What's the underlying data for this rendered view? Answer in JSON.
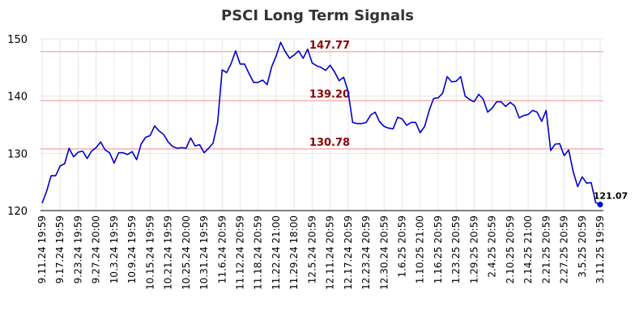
{
  "chart_data": {
    "type": "line",
    "title": "PSCI Long Term Signals",
    "xlabel": "",
    "ylabel": "",
    "ylim": [
      120,
      150
    ],
    "yticks": [
      120,
      130,
      140,
      150
    ],
    "grid": true,
    "line_color": "#0000cc",
    "hline_color": "#f4b6b6",
    "hlabel_color": "#8b0000",
    "xtick_labels": [
      "9.11.24 19:59",
      "9.17.24 19:59",
      "9.23.24 19:59",
      "9.27.24 20:00",
      "10.3.24 19:59",
      "10.9.24 19:59",
      "10.15.24 19:59",
      "10.21.24 19:59",
      "10.25.24 20:00",
      "10.31.24 19:59",
      "11.6.24 20:59",
      "11.12.24 20:59",
      "11.18.24 20:59",
      "11.22.24 21:00",
      "11.29.24 18:00",
      "12.5.24 20:59",
      "12.11.24 20:59",
      "12.17.24 20:59",
      "12.23.24 20:59",
      "12.30.24 20:59",
      "1.6.25 20:59",
      "1.10.25 21:00",
      "1.16.25 20:59",
      "1.23.25 20:59",
      "1.29.25 20:59",
      "2.4.25 20:59",
      "2.10.25 20:59",
      "2.14.25 21:00",
      "2.21.25 20:59",
      "2.27.25 20:59",
      "3.5.25 20:59",
      "3.11.25 19:59"
    ],
    "hlines": [
      {
        "value": 147.77,
        "label": "147.77"
      },
      {
        "value": 139.2,
        "label": "139.20"
      },
      {
        "value": 130.78,
        "label": "130.78"
      }
    ],
    "last_point": {
      "value": 121.07,
      "label": "121.07"
    },
    "series": [
      {
        "values": [
          121.3,
          123.4,
          126.1,
          126.1,
          127.8,
          128.2,
          130.9,
          129.4,
          130.2,
          130.4,
          129.1,
          130.4,
          131.0,
          132.0,
          130.6,
          130.1,
          128.3,
          130.1,
          130.1,
          129.8,
          130.3,
          128.9,
          131.6,
          132.8,
          133.1,
          134.8,
          133.9,
          133.3,
          132.0,
          131.2,
          130.9,
          131.0,
          130.9,
          132.7,
          131.3,
          131.5,
          130.1,
          130.9,
          131.8,
          135.4,
          144.6,
          144.1,
          145.7,
          147.9,
          145.6,
          145.6,
          143.9,
          142.4,
          142.4,
          142.8,
          142.0,
          145.1,
          147.0,
          149.4,
          147.8,
          146.6,
          147.2,
          147.9,
          146.6,
          148.2,
          145.8,
          145.3,
          145.0,
          144.5,
          145.4,
          144.2,
          142.7,
          143.3,
          140.8,
          135.4,
          135.2,
          135.2,
          135.4,
          136.7,
          137.2,
          135.5,
          134.7,
          134.4,
          134.3,
          136.3,
          136.0,
          134.9,
          135.4,
          135.4,
          133.6,
          134.7,
          137.5,
          139.6,
          139.7,
          140.5,
          143.4,
          142.5,
          142.6,
          143.4,
          140.0,
          139.4,
          139.0,
          140.3,
          139.5,
          137.2,
          137.9,
          139.0,
          139.0,
          138.2,
          138.9,
          138.3,
          136.2,
          136.6,
          136.8,
          137.5,
          137.2,
          135.6,
          137.5,
          130.5,
          131.6,
          131.7,
          129.6,
          130.6,
          126.8,
          124.2,
          125.9,
          124.8,
          124.9,
          121.4,
          121.07
        ]
      }
    ]
  }
}
